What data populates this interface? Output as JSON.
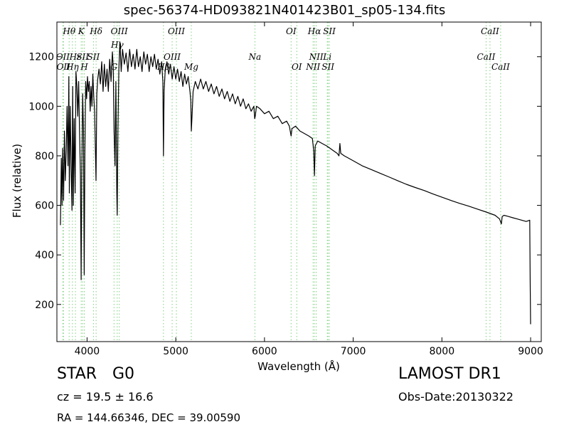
{
  "header": {
    "title": "spec-56374-HD093821N401423B01_sp05-134.fits"
  },
  "footer": {
    "class": "STAR",
    "subclass": "G0",
    "survey": "LAMOST DR1",
    "cz": "cz = 19.5 ± 16.6",
    "obs_date": "Obs-Date:20130322",
    "radec": "RA = 144.66346, DEC = 39.00590"
  },
  "chart_data": {
    "type": "line",
    "title": "spec-56374-HD093821N401423B01_sp05-134.fits",
    "xlabel": "Wavelength (Å)",
    "ylabel": "Flux (relative)",
    "xlim": [
      3660,
      9120
    ],
    "ylim": [
      50,
      1340
    ],
    "xticks": [
      4000,
      5000,
      6000,
      7000,
      8000,
      9000
    ],
    "yticks": [
      200,
      400,
      600,
      800,
      1000,
      1200
    ],
    "grid": false,
    "line_color": "#000000",
    "marker_color": "#7fd07f",
    "series": [
      {
        "points": [
          [
            3700,
            520
          ],
          [
            3710,
            790
          ],
          [
            3718,
            600
          ],
          [
            3725,
            830
          ],
          [
            3735,
            620
          ],
          [
            3745,
            900
          ],
          [
            3755,
            700
          ],
          [
            3765,
            820
          ],
          [
            3775,
            1000
          ],
          [
            3785,
            760
          ],
          [
            3795,
            1120
          ],
          [
            3800,
            650
          ],
          [
            3810,
            1000
          ],
          [
            3820,
            760
          ],
          [
            3830,
            580
          ],
          [
            3838,
            1080
          ],
          [
            3845,
            600
          ],
          [
            3855,
            950
          ],
          [
            3865,
            650
          ],
          [
            3875,
            1140
          ],
          [
            3885,
            1080
          ],
          [
            3895,
            960
          ],
          [
            3905,
            1100
          ],
          [
            3915,
            900
          ],
          [
            3925,
            720
          ],
          [
            3933,
            300
          ],
          [
            3940,
            700
          ],
          [
            3950,
            1050
          ],
          [
            3960,
            900
          ],
          [
            3968,
            320
          ],
          [
            3975,
            800
          ],
          [
            3985,
            1100
          ],
          [
            3995,
            1030
          ],
          [
            4005,
            1120
          ],
          [
            4015,
            1060
          ],
          [
            4025,
            1100
          ],
          [
            4035,
            980
          ],
          [
            4045,
            1080
          ],
          [
            4055,
            1000
          ],
          [
            4065,
            1130
          ],
          [
            4075,
            1040
          ],
          [
            4085,
            980
          ],
          [
            4095,
            800
          ],
          [
            4101,
            700
          ],
          [
            4110,
            1050
          ],
          [
            4120,
            1110
          ],
          [
            4135,
            1150
          ],
          [
            4150,
            1090
          ],
          [
            4165,
            1180
          ],
          [
            4180,
            1060
          ],
          [
            4195,
            1170
          ],
          [
            4210,
            1080
          ],
          [
            4225,
            1150
          ],
          [
            4240,
            1060
          ],
          [
            4255,
            1190
          ],
          [
            4270,
            1100
          ],
          [
            4285,
            1220
          ],
          [
            4295,
            1160
          ],
          [
            4305,
            900
          ],
          [
            4315,
            760
          ],
          [
            4325,
            1100
          ],
          [
            4335,
            650
          ],
          [
            4340,
            560
          ],
          [
            4348,
            900
          ],
          [
            4358,
            1150
          ],
          [
            4370,
            1260
          ],
          [
            4385,
            1140
          ],
          [
            4400,
            1230
          ],
          [
            4420,
            1170
          ],
          [
            4440,
            1215
          ],
          [
            4460,
            1140
          ],
          [
            4480,
            1230
          ],
          [
            4500,
            1160
          ],
          [
            4520,
            1210
          ],
          [
            4540,
            1150
          ],
          [
            4560,
            1230
          ],
          [
            4580,
            1160
          ],
          [
            4600,
            1200
          ],
          [
            4620,
            1140
          ],
          [
            4640,
            1220
          ],
          [
            4660,
            1170
          ],
          [
            4680,
            1210
          ],
          [
            4700,
            1140
          ],
          [
            4720,
            1200
          ],
          [
            4740,
            1160
          ],
          [
            4760,
            1210
          ],
          [
            4780,
            1150
          ],
          [
            4800,
            1190
          ],
          [
            4820,
            1130
          ],
          [
            4840,
            1180
          ],
          [
            4855,
            1100
          ],
          [
            4861,
            800
          ],
          [
            4868,
            1060
          ],
          [
            4880,
            1140
          ],
          [
            4900,
            1180
          ],
          [
            4920,
            1130
          ],
          [
            4940,
            1170
          ],
          [
            4960,
            1110
          ],
          [
            4980,
            1160
          ],
          [
            5000,
            1110
          ],
          [
            5020,
            1150
          ],
          [
            5040,
            1100
          ],
          [
            5060,
            1140
          ],
          [
            5080,
            1080
          ],
          [
            5100,
            1130
          ],
          [
            5120,
            1090
          ],
          [
            5140,
            1120
          ],
          [
            5160,
            1060
          ],
          [
            5170,
            1020
          ],
          [
            5175,
            900
          ],
          [
            5183,
            960
          ],
          [
            5195,
            1060
          ],
          [
            5220,
            1100
          ],
          [
            5250,
            1070
          ],
          [
            5280,
            1110
          ],
          [
            5310,
            1070
          ],
          [
            5340,
            1100
          ],
          [
            5370,
            1060
          ],
          [
            5400,
            1090
          ],
          [
            5430,
            1050
          ],
          [
            5460,
            1080
          ],
          [
            5490,
            1040
          ],
          [
            5520,
            1070
          ],
          [
            5550,
            1030
          ],
          [
            5580,
            1060
          ],
          [
            5610,
            1020
          ],
          [
            5640,
            1050
          ],
          [
            5670,
            1010
          ],
          [
            5700,
            1040
          ],
          [
            5730,
            1000
          ],
          [
            5760,
            1030
          ],
          [
            5790,
            990
          ],
          [
            5820,
            1010
          ],
          [
            5850,
            980
          ],
          [
            5880,
            1000
          ],
          [
            5890,
            950
          ],
          [
            5896,
            960
          ],
          [
            5910,
            1000
          ],
          [
            5950,
            990
          ],
          [
            6000,
            970
          ],
          [
            6050,
            980
          ],
          [
            6100,
            950
          ],
          [
            6150,
            960
          ],
          [
            6200,
            930
          ],
          [
            6250,
            940
          ],
          [
            6280,
            920
          ],
          [
            6300,
            880
          ],
          [
            6310,
            910
          ],
          [
            6350,
            920
          ],
          [
            6400,
            900
          ],
          [
            6450,
            890
          ],
          [
            6500,
            880
          ],
          [
            6540,
            870
          ],
          [
            6555,
            820
          ],
          [
            6563,
            720
          ],
          [
            6572,
            840
          ],
          [
            6600,
            860
          ],
          [
            6650,
            850
          ],
          [
            6700,
            840
          ],
          [
            6740,
            830
          ],
          [
            6780,
            820
          ],
          [
            6820,
            810
          ],
          [
            6840,
            800
          ],
          [
            6850,
            850
          ],
          [
            6860,
            810
          ],
          [
            6900,
            800
          ],
          [
            6950,
            790
          ],
          [
            7000,
            780
          ],
          [
            7100,
            760
          ],
          [
            7200,
            745
          ],
          [
            7300,
            730
          ],
          [
            7400,
            715
          ],
          [
            7500,
            700
          ],
          [
            7600,
            685
          ],
          [
            7700,
            672
          ],
          [
            7800,
            660
          ],
          [
            7900,
            646
          ],
          [
            8000,
            633
          ],
          [
            8100,
            620
          ],
          [
            8200,
            608
          ],
          [
            8300,
            597
          ],
          [
            8400,
            585
          ],
          [
            8500,
            573
          ],
          [
            8600,
            560
          ],
          [
            8650,
            545
          ],
          [
            8670,
            525
          ],
          [
            8680,
            555
          ],
          [
            8700,
            560
          ],
          [
            8750,
            555
          ],
          [
            8800,
            550
          ],
          [
            8850,
            545
          ],
          [
            8900,
            540
          ],
          [
            8950,
            535
          ],
          [
            8990,
            540
          ],
          [
            8995,
            300
          ],
          [
            9000,
            120
          ]
        ]
      }
    ],
    "line_markers": [
      {
        "wave": 3727,
        "label": "OII",
        "row": 2
      },
      {
        "wave": 3734,
        "label": "OII",
        "row": 3
      },
      {
        "wave": 3798,
        "label": "Hθ",
        "row": 0
      },
      {
        "wave": 3835,
        "label": "Hη",
        "row": 3
      },
      {
        "wave": 3869,
        "label": "Hε",
        "row": 2
      },
      {
        "wave": 3934,
        "label": "K",
        "row": 0
      },
      {
        "wave": 3950,
        "label": "SII",
        "row": 2
      },
      {
        "wave": 3969,
        "label": "H",
        "row": 3
      },
      {
        "wave": 4072,
        "label": "SII",
        "row": 2
      },
      {
        "wave": 4102,
        "label": "Hδ",
        "row": 0
      },
      {
        "wave": 4304,
        "label": "G",
        "row": 3
      },
      {
        "wave": 4340,
        "label": "Hγ",
        "row": 1
      },
      {
        "wave": 4363,
        "label": "OIII",
        "row": 0
      },
      {
        "wave": 4861,
        "label": "Hβ",
        "row": 3
      },
      {
        "wave": 4959,
        "label": "OIII",
        "row": 2
      },
      {
        "wave": 5007,
        "label": "OIII",
        "row": 0
      },
      {
        "wave": 5175,
        "label": "Mg",
        "row": 3
      },
      {
        "wave": 5892,
        "label": "Na",
        "row": 2
      },
      {
        "wave": 6300,
        "label": "OI",
        "row": 0
      },
      {
        "wave": 6364,
        "label": "OI",
        "row": 3
      },
      {
        "wave": 6548,
        "label": "NII",
        "row": 3
      },
      {
        "wave": 6563,
        "label": "Hα",
        "row": 0
      },
      {
        "wave": 6583,
        "label": "NII",
        "row": 2
      },
      {
        "wave": 6708,
        "label": "Li",
        "row": 2
      },
      {
        "wave": 6716,
        "label": "SII",
        "row": 3
      },
      {
        "wave": 6731,
        "label": "SII",
        "row": 0
      },
      {
        "wave": 8498,
        "label": "CaII",
        "row": 2
      },
      {
        "wave": 8542,
        "label": "CaII",
        "row": 0
      },
      {
        "wave": 8662,
        "label": "CaII",
        "row": 3
      }
    ]
  }
}
